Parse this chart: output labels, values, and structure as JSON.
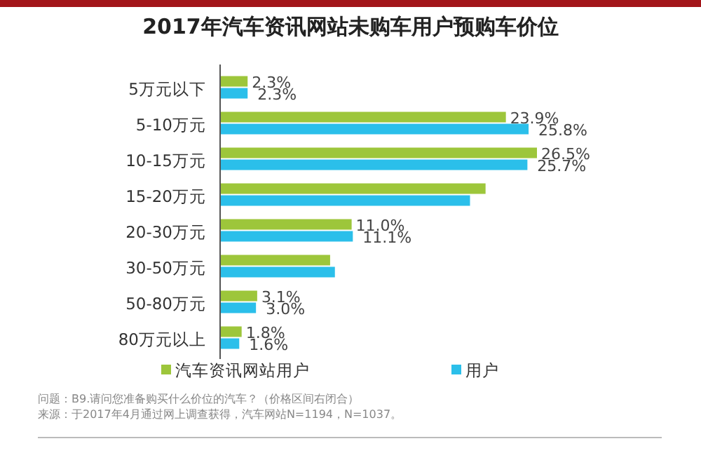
{
  "chart_data": {
    "type": "bar",
    "orientation": "horizontal",
    "title": "2017年汽车资讯网站未购车用户预购车价位",
    "categories": [
      "5万元以下",
      "5-10万元",
      "10-15万元",
      "15-20万元",
      "20-30万元",
      "30-50万元",
      "50-80万元",
      "80万元以上"
    ],
    "series": [
      {
        "name": "汽车资讯网站用户",
        "color": "#9dc63b",
        "values": [
          2.3,
          23.9,
          26.5,
          22.2,
          11.0,
          9.2,
          3.1,
          1.8
        ],
        "value_labels": [
          "2.3%",
          "23.9%",
          "26.5%",
          null,
          "11.0%",
          null,
          "3.1%",
          "1.8%"
        ]
      },
      {
        "name": "用户",
        "color": "#2bbfea",
        "values": [
          2.3,
          25.8,
          25.7,
          20.9,
          11.1,
          9.6,
          3.0,
          1.6
        ],
        "value_labels": [
          "2.3%",
          "25.8%",
          "25.7%",
          null,
          "11.1%",
          null,
          "3.0%",
          "1.6%"
        ]
      }
    ],
    "legend": "bottom",
    "annotations": [
      "问题：B9.请问您准备购买什么价位的汽车？（价格区间右闭合）",
      "来源：于2017年4月通过网上调查获得，汽车网站N=1194，N=1037。"
    ]
  }
}
